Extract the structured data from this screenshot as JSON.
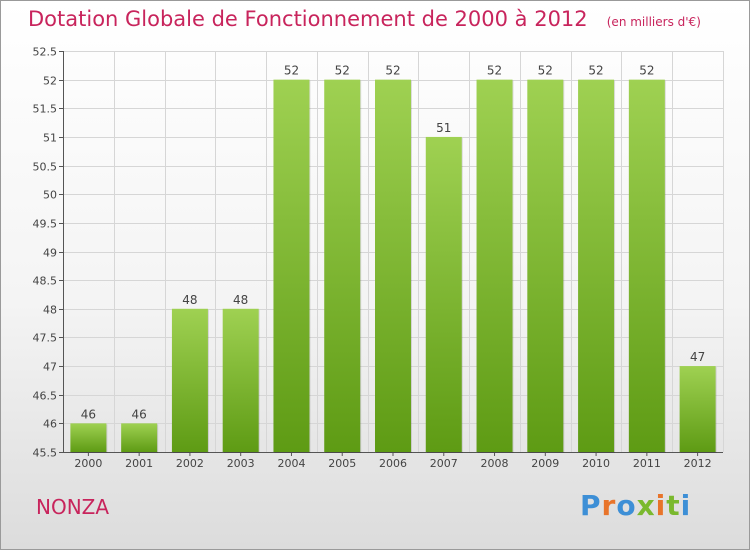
{
  "header": {
    "title": "Dotation Globale de Fonctionnement de 2000 à 2012",
    "unit": "(en milliers d'€)"
  },
  "footer": {
    "place": "NONZA",
    "logo_text": "Proxiti",
    "logo_colors": [
      "#3d8fd6",
      "#e8742a",
      "#3d8fd6",
      "#7ab92e",
      "#e8742a",
      "#7ab92e",
      "#3d8fd6"
    ]
  },
  "colors": {
    "title": "#c8245c",
    "bar_top": "#9fd152",
    "bar_bottom": "#5e9b14",
    "grid": "#d6d6d6"
  },
  "chart_data": {
    "type": "bar",
    "categories": [
      "2000",
      "2001",
      "2002",
      "2003",
      "2004",
      "2005",
      "2006",
      "2007",
      "2008",
      "2009",
      "2010",
      "2011",
      "2012"
    ],
    "values": [
      46,
      46,
      48,
      48,
      52,
      52,
      52,
      51,
      52,
      52,
      52,
      52,
      47
    ],
    "data_labels": [
      "46",
      "46",
      "48",
      "48",
      "52",
      "52",
      "52",
      "51",
      "52",
      "52",
      "52",
      "52",
      "47"
    ],
    "title": "Dotation Globale de Fonctionnement de 2000 à 2012",
    "xlabel": "",
    "ylabel": "",
    "ylim": [
      45.5,
      52.5
    ],
    "yticks": [
      45.5,
      46,
      46.5,
      47,
      47.5,
      48,
      48.5,
      49,
      49.5,
      50,
      50.5,
      51,
      51.5,
      52,
      52.5
    ],
    "ytick_labels": [
      "45.5",
      "46",
      "46.5",
      "47",
      "47.5",
      "48",
      "48.5",
      "49",
      "49.5",
      "50",
      "50.5",
      "51",
      "51.5",
      "52",
      "52.5"
    ],
    "grid": true,
    "legend": "none"
  }
}
